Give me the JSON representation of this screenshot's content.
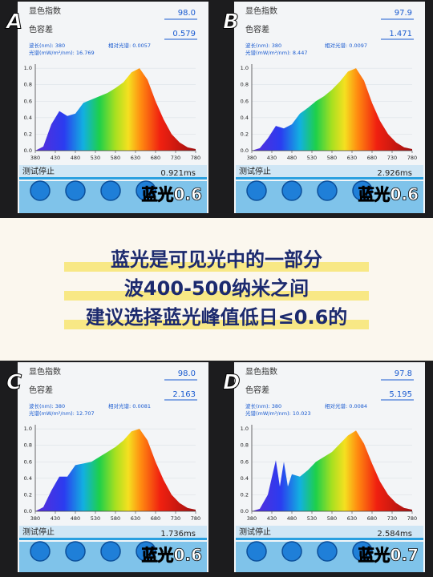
{
  "panels": [
    {
      "letter": "A",
      "cri_label": "显色指数",
      "cri_value": "98.0",
      "sdcm_label": "色容差",
      "sdcm_value": "0.579",
      "wavelength_text": "波长(nm): 380",
      "relative_text": "相对光谱: 0.0057",
      "spectrum_text": "光谱(mW/m²/nm): 16.769",
      "status": "测试停止",
      "time": "0.921ms",
      "overlay": "蓝光0.6",
      "chart": {
        "type": "area",
        "x": [
          380,
          400,
          420,
          440,
          460,
          480,
          500,
          520,
          540,
          560,
          580,
          600,
          620,
          640,
          660,
          680,
          700,
          720,
          740,
          760,
          780
        ],
        "values": [
          0,
          0.05,
          0.32,
          0.48,
          0.42,
          0.45,
          0.58,
          0.62,
          0.66,
          0.7,
          0.76,
          0.83,
          0.95,
          1.0,
          0.86,
          0.6,
          0.38,
          0.2,
          0.1,
          0.04,
          0.02
        ],
        "xlim": [
          380,
          780
        ],
        "ylim": [
          0,
          1.05
        ],
        "xticks": [
          380,
          430,
          480,
          530,
          580,
          630,
          680,
          730,
          780
        ],
        "yticks": [
          {
            "value": 0,
            "label": "0.0"
          },
          0.2,
          0.4,
          0.6,
          0.8,
          {
            "value": 1,
            "label": "1.0"
          }
        ]
      }
    },
    {
      "letter": "B",
      "cri_label": "显色指数",
      "cri_value": "97.9",
      "sdcm_label": "色容差",
      "sdcm_value": "1.471",
      "wavelength_text": "波长(nm): 380",
      "relative_text": "相对光谱: 0.0097",
      "spectrum_text": "光谱(mW/m²/nm): 8.447",
      "status": "测试停止",
      "time": "2.926ms",
      "overlay": "蓝光0.6",
      "chart": {
        "type": "area",
        "x": [
          380,
          400,
          420,
          440,
          460,
          480,
          500,
          520,
          540,
          560,
          580,
          600,
          620,
          640,
          660,
          680,
          700,
          720,
          740,
          760,
          780
        ],
        "values": [
          0,
          0.03,
          0.15,
          0.3,
          0.27,
          0.32,
          0.45,
          0.52,
          0.6,
          0.66,
          0.74,
          0.84,
          0.96,
          1.0,
          0.85,
          0.58,
          0.36,
          0.2,
          0.1,
          0.04,
          0.02
        ],
        "xlim": [
          380,
          780
        ],
        "ylim": [
          0,
          1.05
        ],
        "xticks": [
          380,
          430,
          480,
          530,
          580,
          630,
          680,
          730,
          780
        ],
        "yticks": [
          {
            "value": 0,
            "label": "0.0"
          },
          0.2,
          0.4,
          0.6,
          0.8,
          {
            "value": 1,
            "label": "1.0"
          }
        ]
      }
    },
    {
      "letter": "C",
      "cri_label": "显色指数",
      "cri_value": "98.0",
      "sdcm_label": "色容差",
      "sdcm_value": "2.163",
      "wavelength_text": "波长(nm): 380",
      "relative_text": "相对光谱: 0.0081",
      "spectrum_text": "光谱(mW/m²/nm): 12.707",
      "status": "测试停止",
      "time": "1.736ms",
      "overlay": "蓝光0.6",
      "chart": {
        "type": "area",
        "x": [
          380,
          400,
          420,
          440,
          460,
          480,
          500,
          520,
          540,
          560,
          580,
          600,
          620,
          640,
          660,
          680,
          700,
          720,
          740,
          760,
          780
        ],
        "values": [
          0,
          0.05,
          0.25,
          0.42,
          0.42,
          0.56,
          0.58,
          0.6,
          0.66,
          0.72,
          0.78,
          0.86,
          0.97,
          1.0,
          0.86,
          0.6,
          0.38,
          0.2,
          0.1,
          0.04,
          0.02
        ],
        "xlim": [
          380,
          780
        ],
        "ylim": [
          0,
          1.05
        ],
        "xticks": [
          380,
          430,
          480,
          530,
          580,
          630,
          680,
          730,
          780
        ],
        "yticks": [
          {
            "value": 0,
            "label": "0.0"
          },
          0.2,
          0.4,
          0.6,
          0.8,
          {
            "value": 1,
            "label": "1.0"
          }
        ]
      }
    },
    {
      "letter": "D",
      "cri_label": "显色指数",
      "cri_value": "97.8",
      "sdcm_label": "色容差",
      "sdcm_value": "5.195",
      "wavelength_text": "波长(nm): 380",
      "relative_text": "相对光谱: 0.0084",
      "spectrum_text": "光谱(mW/m²/nm): 10.023",
      "status": "测试停止",
      "time": "2.584ms",
      "overlay": "蓝光0.7",
      "chart": {
        "type": "area",
        "x": [
          380,
          400,
          420,
          440,
          450,
          460,
          470,
          480,
          500,
          520,
          540,
          560,
          580,
          600,
          620,
          640,
          660,
          680,
          700,
          720,
          740,
          760,
          780
        ],
        "values": [
          0,
          0.03,
          0.2,
          0.62,
          0.3,
          0.6,
          0.3,
          0.45,
          0.42,
          0.5,
          0.6,
          0.66,
          0.72,
          0.82,
          0.92,
          0.98,
          0.82,
          0.58,
          0.36,
          0.2,
          0.1,
          0.04,
          0.02
        ],
        "xlim": [
          380,
          780
        ],
        "ylim": [
          0,
          1.05
        ],
        "xticks": [
          380,
          430,
          480,
          530,
          580,
          630,
          680,
          730,
          780
        ],
        "yticks": [
          {
            "value": 0,
            "label": "0.0"
          },
          0.2,
          0.4,
          0.6,
          0.8,
          {
            "value": 1,
            "label": "1.0"
          }
        ]
      }
    }
  ],
  "caption": {
    "lines": [
      "蓝光是可见光中的一部分",
      "波400-500纳米之间",
      "建议选择蓝光峰值低日≤0.6的"
    ]
  }
}
